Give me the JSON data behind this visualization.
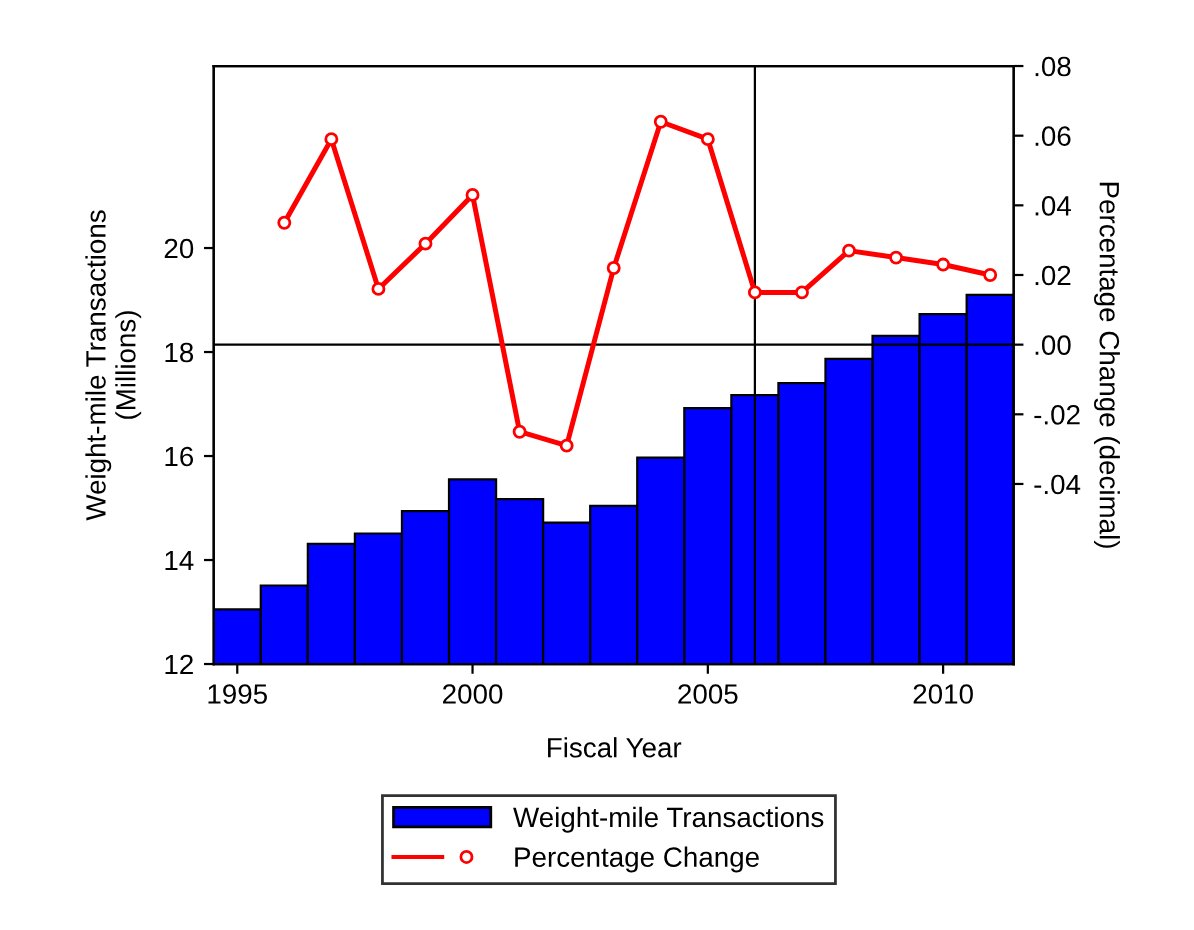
{
  "chart_data": {
    "type": "bar",
    "xlabel": "Fiscal Year",
    "ylabel": "Weight-mile Transactions\n(Millions)",
    "y2label": "Percentage Change (decimal)",
    "x": [
      1995,
      1996,
      1997,
      1998,
      1999,
      2000,
      2001,
      2002,
      2003,
      2004,
      2005,
      2006,
      2007,
      2008,
      2009,
      2010,
      2011
    ],
    "xlim": [
      1994.5,
      2011.5
    ],
    "xticks": [
      1995,
      2000,
      2005,
      2010
    ],
    "ylim": [
      12,
      23.5
    ],
    "yticks": [
      12,
      14,
      16,
      18,
      20
    ],
    "y2lim": [
      -0.0917,
      0.08
    ],
    "y2ticks": [
      {
        "value": 0.08,
        "label": ".08"
      },
      {
        "value": 0.06,
        "label": ".06"
      },
      {
        "value": 0.04,
        "label": ".04"
      },
      {
        "value": 0.02,
        "label": ".02"
      },
      {
        "value": 0,
        "label": ".00"
      },
      {
        "value": -0.02,
        "label": "-.02"
      },
      {
        "value": -0.04,
        "label": "-.04"
      }
    ],
    "series": [
      {
        "name": "Weight-mile Transactions",
        "color": "#0000ff",
        "values": [
          13.05,
          13.51,
          14.31,
          14.51,
          14.94,
          15.55,
          15.17,
          14.72,
          15.04,
          15.97,
          16.92,
          17.17,
          17.4,
          17.87,
          18.31,
          18.73,
          19.1
        ]
      },
      {
        "name": "Percentage Change",
        "type": "line",
        "axis": "y2",
        "color": "#ff0000",
        "marker": "circle",
        "values": [
          null,
          0.035,
          0.059,
          0.016,
          0.029,
          0.043,
          -0.025,
          -0.029,
          0.022,
          0.064,
          0.059,
          0.015,
          0.015,
          0.027,
          0.025,
          0.023,
          0.02
        ]
      }
    ],
    "ref_lines": [
      {
        "axis": "y2",
        "value": 0,
        "color": "#000000"
      },
      {
        "axis": "x",
        "value": 2006,
        "color": "#000000"
      }
    ],
    "grid": false,
    "legend": "bottom"
  }
}
